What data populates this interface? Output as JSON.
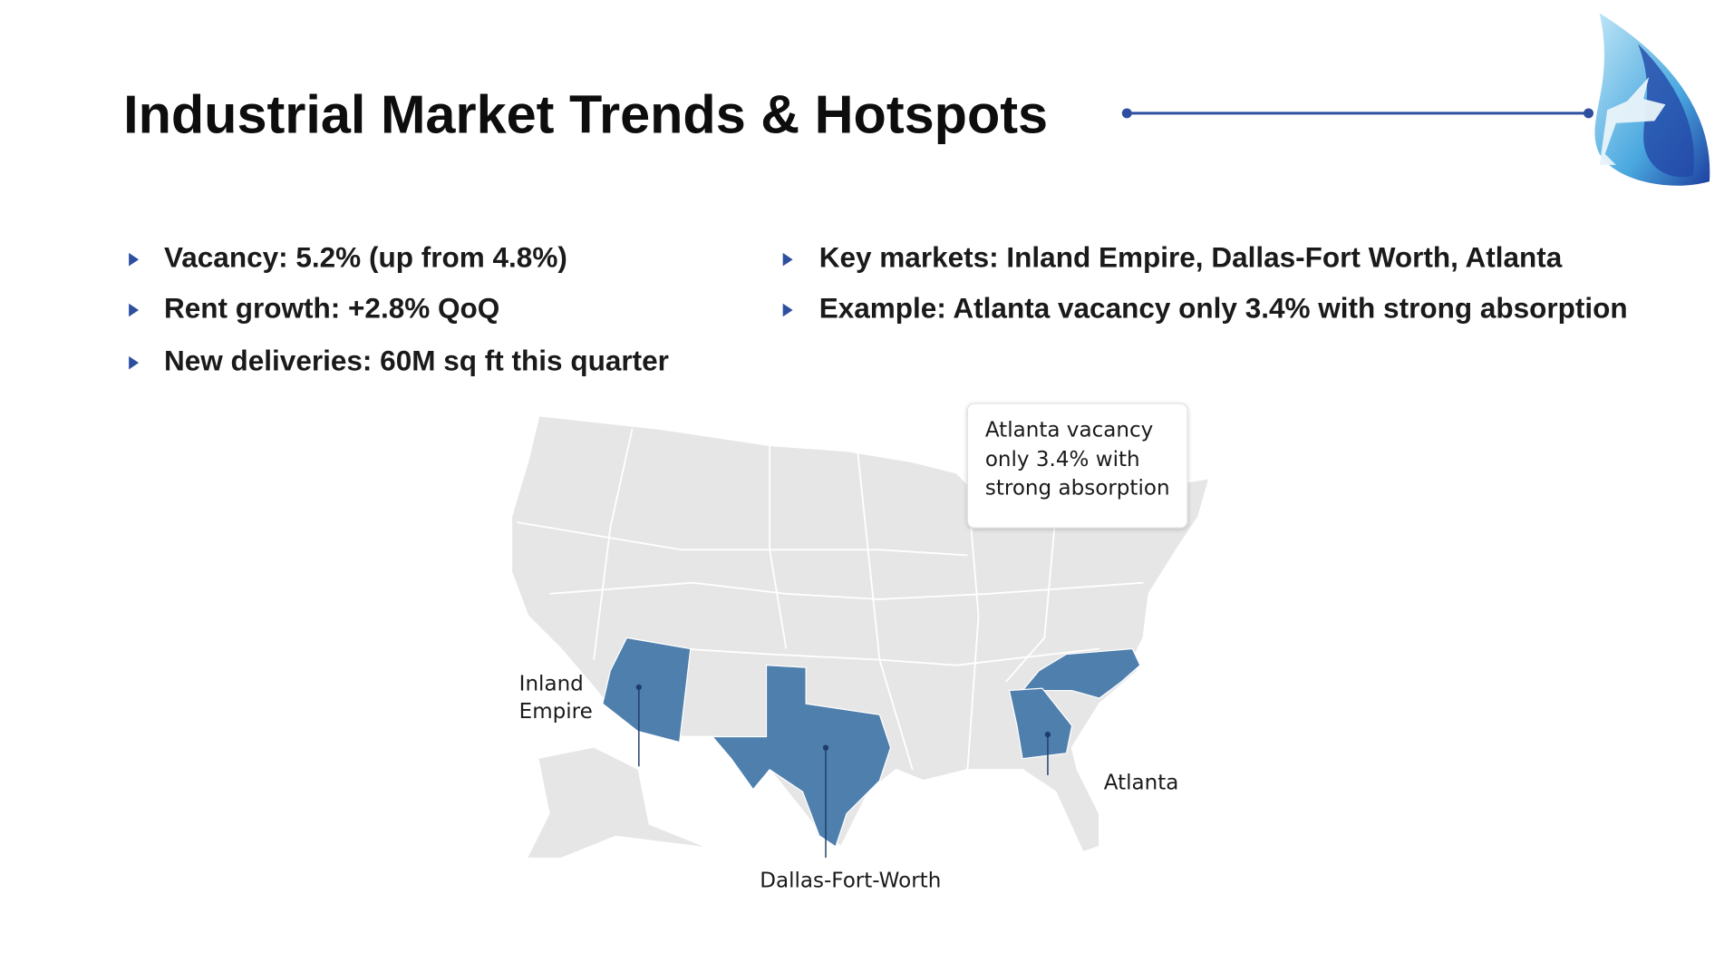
{
  "header": {
    "title": "Industrial Market Trends & Hotspots"
  },
  "bullets_left": [
    "Vacancy: 5.2% (up from 4.8%)",
    "Rent growth: +2.8% QoQ",
    "New deliveries: 60M sq ft this quarter"
  ],
  "bullets_right": [
    "Key markets: Inland Empire, Dallas-Fort Worth, Atlanta",
    "Example: Atlanta vacancy only 3.4% with strong absorption"
  ],
  "map": {
    "callout": "Atlanta vacancy only 3.4% with strong absorption",
    "labels": [
      "Inland Empire",
      "Dallas-Fort-Worth",
      "Atlanta"
    ]
  }
}
